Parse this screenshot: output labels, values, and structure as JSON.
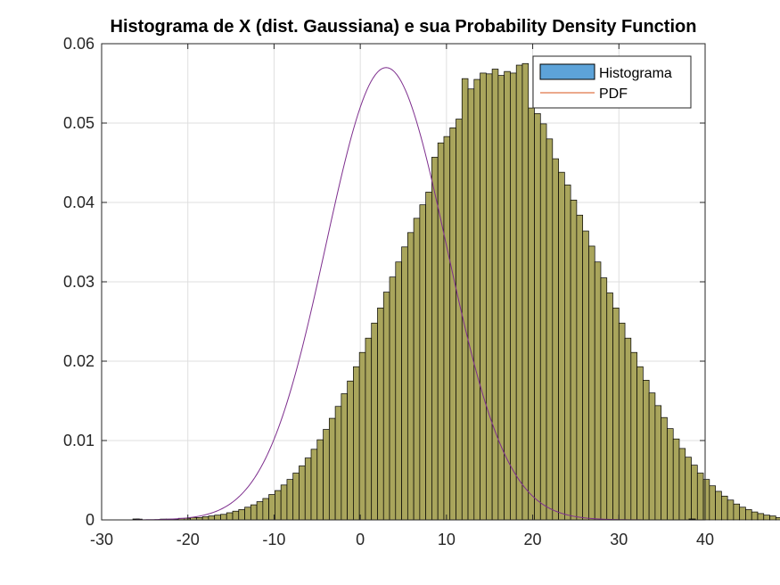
{
  "chart_data": {
    "type": "bar",
    "title": "Histograma de X (dist. Gaussiana) e sua Probability Density Function",
    "xlabel": "",
    "ylabel": "",
    "xlim": [
      -30,
      40
    ],
    "ylim": [
      0,
      0.06
    ],
    "xticks": [
      -30,
      -20,
      -10,
      0,
      10,
      20,
      30,
      40
    ],
    "yticks": [
      0,
      0.01,
      0.02,
      0.03,
      0.04,
      0.05,
      0.06
    ],
    "xtick_labels": [
      "-30",
      "-20",
      "-10",
      "0",
      "10",
      "20",
      "30",
      "40"
    ],
    "ytick_labels": [
      "0",
      "0.01",
      "0.02",
      "0.03",
      "0.04",
      "0.05",
      "0.06"
    ],
    "grid": true,
    "legend_position": "top-right",
    "bin_width": 0.7,
    "series": [
      {
        "name": "Histograma",
        "type": "histogram",
        "color": "#A9A55C",
        "legend_color": "#5DA3D9",
        "edge_color": "#000000",
        "bin_edges_start": -26.0,
        "values": [
          0.0001,
          0.0,
          0.0,
          0.0,
          0.0001,
          0.0001,
          0.0001,
          0.0002,
          0.0002,
          0.0003,
          0.0003,
          0.0004,
          0.0005,
          0.0006,
          0.0007,
          0.0009,
          0.0011,
          0.0013,
          0.0016,
          0.0019,
          0.0023,
          0.0027,
          0.0032,
          0.0037,
          0.0044,
          0.0051,
          0.0059,
          0.0068,
          0.0078,
          0.0089,
          0.0101,
          0.0114,
          0.0128,
          0.0143,
          0.0159,
          0.0175,
          0.0193,
          0.0211,
          0.0229,
          0.0248,
          0.0267,
          0.0287,
          0.0306,
          0.0325,
          0.0344,
          0.0362,
          0.038,
          0.0397,
          0.0413,
          0.0457,
          0.0475,
          0.0483,
          0.0494,
          0.0505,
          0.0556,
          0.0543,
          0.0555,
          0.0563,
          0.0562,
          0.0568,
          0.056,
          0.0565,
          0.0563,
          0.0573,
          0.0575,
          0.0519,
          0.0512,
          0.0499,
          0.048,
          0.0455,
          0.0438,
          0.0422,
          0.0403,
          0.0384,
          0.0364,
          0.0345,
          0.0325,
          0.0305,
          0.0286,
          0.0267,
          0.0248,
          0.0229,
          0.0211,
          0.0193,
          0.0176,
          0.016,
          0.0144,
          0.0129,
          0.0115,
          0.0102,
          0.009,
          0.0079,
          0.0069,
          0.0059,
          0.0051,
          0.0043,
          0.0036,
          0.003,
          0.0025,
          0.002,
          0.0016,
          0.0013,
          0.001,
          0.0008,
          0.0006,
          0.0005,
          0.0003,
          0.0003,
          0.0002,
          0.0001,
          0.0001
        ]
      },
      {
        "name": "PDF",
        "type": "line",
        "color": "#7E2F8E",
        "legend_color": "#D95319",
        "mean": 3.0,
        "std": 7.0
      }
    ],
    "tail_marks": [
      {
        "x": -26.0,
        "y": 0.0001
      },
      {
        "x": 38.5,
        "y": 0.0001
      }
    ]
  }
}
